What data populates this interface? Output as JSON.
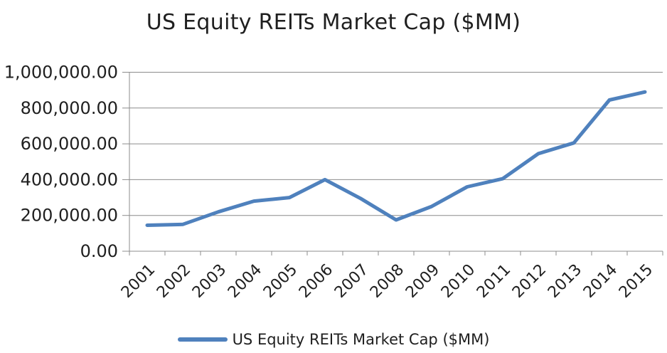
{
  "chart_data": {
    "type": "line",
    "title": "US Equity REITs Market Cap ($MM)",
    "categories": [
      "2001",
      "2002",
      "2003",
      "2004",
      "2005",
      "2006",
      "2007",
      "2008",
      "2009",
      "2010",
      "2011",
      "2012",
      "2013",
      "2014",
      "2015"
    ],
    "series": [
      {
        "name": "US Equity REITs Market Cap ($MM)",
        "values": [
          145000,
          150000,
          220000,
          280000,
          300000,
          400000,
          295000,
          175000,
          250000,
          360000,
          405000,
          545000,
          605000,
          845000,
          890000
        ]
      }
    ],
    "xlabel": "",
    "ylabel": "",
    "ylim": [
      0,
      1000000
    ],
    "y_ticks": [
      0,
      200000,
      400000,
      600000,
      800000,
      1000000
    ],
    "y_tick_labels": [
      "0.00",
      "200,000.00",
      "400,000.00",
      "600,000.00",
      "800,000.00",
      "1,000,000.00"
    ],
    "grid": "horizontal-only",
    "legend_position": "bottom-center",
    "x_label_rotation_deg": -45,
    "colors": {
      "series": "#4F81BD",
      "grid": "#8C8C8C",
      "axis": "#8C8C8C",
      "text": "#1F1F1F",
      "background": "#FFFFFF"
    }
  }
}
